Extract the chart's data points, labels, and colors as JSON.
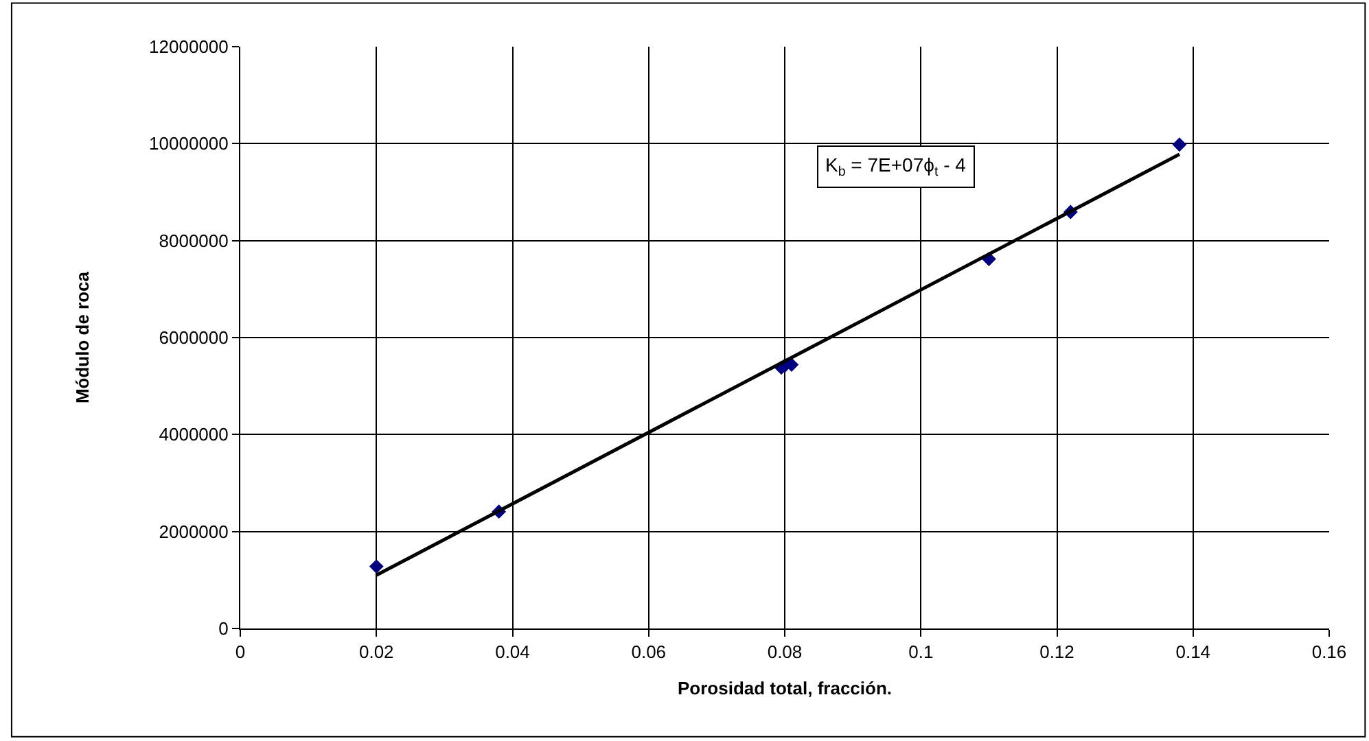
{
  "chart_data": {
    "type": "scatter",
    "xlabel": "Porosidad total, fracción.",
    "ylabel": "Módulo de roca",
    "series": [
      {
        "color": "#000080",
        "marker": "diamond",
        "x": [
          0.02,
          0.038,
          0.0795,
          0.08,
          0.081,
          0.11,
          0.122,
          0.138
        ],
        "values": [
          1280000,
          2410000,
          5380000,
          5420000,
          5440000,
          7620000,
          8590000,
          9980000
        ]
      },
      {
        "type": "line",
        "color": "#000000",
        "marker": "none",
        "line_style": "solid",
        "x": [
          0.02,
          0.138
        ],
        "values": [
          1100000,
          9780000
        ]
      }
    ],
    "annotations": [
      "K$_{b}$ = 7E+07ϕ$_{t}$ - 4"
    ],
    "xlim": [
      0,
      0.16
    ],
    "xticks": [
      0,
      0.02,
      0.04,
      0.06,
      0.08,
      0.1,
      0.12,
      0.14,
      0.16
    ],
    "ylim": [
      0,
      12000000
    ],
    "yticks": [
      0,
      2000000,
      4000000,
      6000000,
      8000000,
      10000000,
      12000000
    ],
    "grid": true
  }
}
